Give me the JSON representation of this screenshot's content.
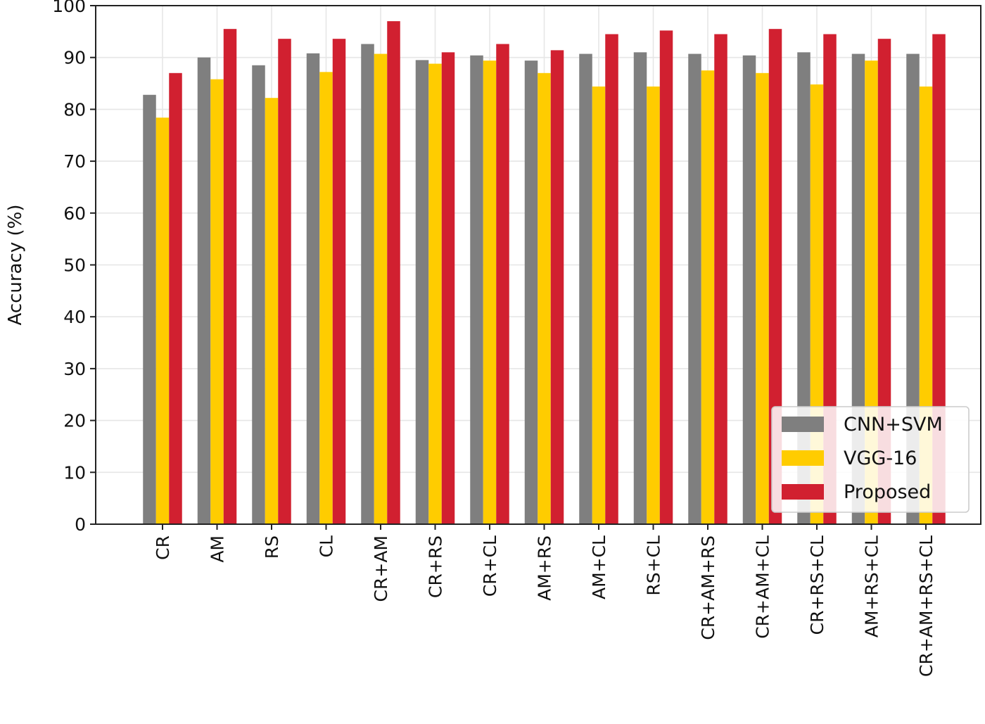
{
  "chart_data": {
    "type": "bar",
    "ylabel": "Accuracy (%)",
    "ylim": [
      0,
      100
    ],
    "yticks": [
      "0",
      "10",
      "20",
      "30",
      "40",
      "50",
      "60",
      "70",
      "80",
      "90",
      "100"
    ],
    "grid": true,
    "legend_position": "bottom-right",
    "categories": [
      "CR",
      "AM",
      "RS",
      "CL",
      "CR+AM",
      "CR+RS",
      "CR+CL",
      "AM+RS",
      "AM+CL",
      "RS+CL",
      "CR+AM+RS",
      "CR+AM+CL",
      "CR+RS+CL",
      "AM+RS+CL",
      "CR+AM+RS+CL"
    ],
    "series": [
      {
        "name": "CNN+SVM",
        "color": "#7f7f7f",
        "values": [
          82.8,
          90.0,
          88.5,
          90.8,
          92.6,
          89.5,
          90.4,
          89.4,
          90.7,
          91.0,
          90.7,
          90.4,
          91.0,
          90.7,
          90.7
        ]
      },
      {
        "name": "VGG-16",
        "color": "#ffcc00",
        "values": [
          78.4,
          85.8,
          82.2,
          87.2,
          90.7,
          88.8,
          89.4,
          87.0,
          84.4,
          84.4,
          87.5,
          87.0,
          84.8,
          89.4,
          84.4
        ]
      },
      {
        "name": "Proposed",
        "color": "#d12030",
        "values": [
          87.0,
          95.5,
          93.6,
          93.6,
          97.0,
          91.0,
          92.6,
          91.4,
          94.5,
          95.2,
          94.5,
          95.5,
          94.5,
          93.6,
          94.5
        ]
      }
    ]
  }
}
